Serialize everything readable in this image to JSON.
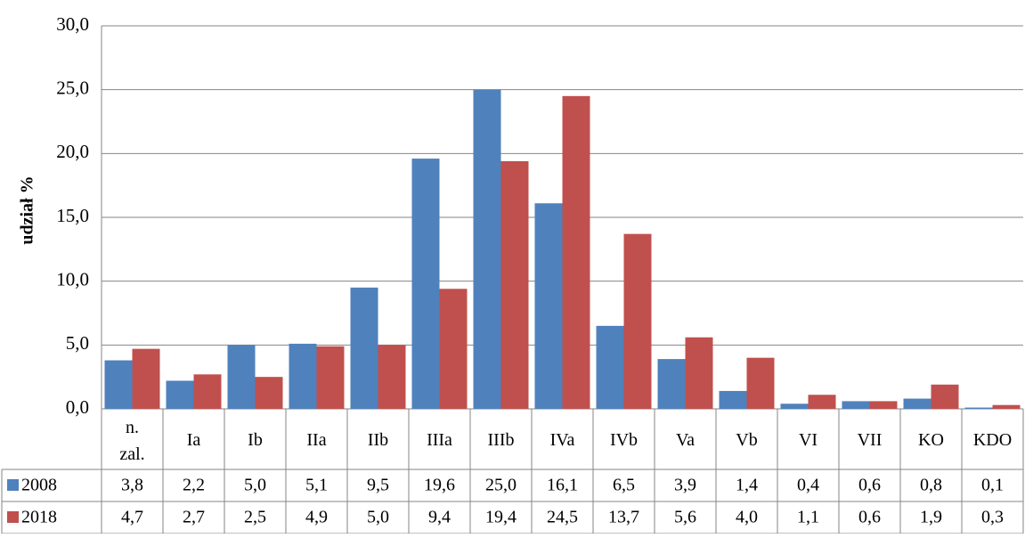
{
  "chart_data": {
    "type": "bar",
    "title": "",
    "xlabel": "",
    "ylabel": "udział %",
    "ylim": [
      0,
      30
    ],
    "ytick_step": 5,
    "ytick_labels": [
      "0,0",
      "5,0",
      "10,0",
      "15,0",
      "20,0",
      "25,0",
      "30,0"
    ],
    "grid": true,
    "legend": "data-table",
    "categories": [
      "n. zal.",
      "Ia",
      "Ib",
      "IIa",
      "IIb",
      "IIIa",
      "IIIb",
      "IVa",
      "IVb",
      "Va",
      "Vb",
      "VI",
      "VII",
      "KO",
      "KDO"
    ],
    "series": [
      {
        "name": "2008",
        "color": "#4F81BD",
        "values": [
          3.8,
          2.2,
          5.0,
          5.1,
          9.5,
          19.6,
          25.0,
          16.1,
          6.5,
          3.9,
          1.4,
          0.4,
          0.6,
          0.8,
          0.1
        ],
        "value_labels": [
          "3,8",
          "2,2",
          "5,0",
          "5,1",
          "9,5",
          "19,6",
          "25,0",
          "16,1",
          "6,5",
          "3,9",
          "1,4",
          "0,4",
          "0,6",
          "0,8",
          "0,1"
        ]
      },
      {
        "name": "2018",
        "color": "#C0504D",
        "values": [
          4.7,
          2.7,
          2.5,
          4.9,
          5.0,
          9.4,
          19.4,
          24.5,
          13.7,
          5.6,
          4.0,
          1.1,
          0.6,
          1.9,
          0.3
        ],
        "value_labels": [
          "4,7",
          "2,7",
          "2,5",
          "4,9",
          "5,0",
          "9,4",
          "19,4",
          "24,5",
          "13,7",
          "5,6",
          "4,0",
          "1,1",
          "0,6",
          "1,9",
          "0,3"
        ]
      }
    ]
  }
}
